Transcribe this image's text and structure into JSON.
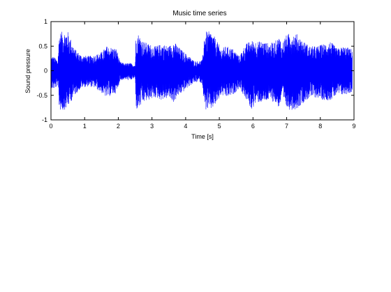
{
  "chart_data": {
    "type": "line",
    "title": "Music time series",
    "xlabel": "Time [s]",
    "ylabel": "Sound pressure",
    "xlim": [
      0,
      9
    ],
    "ylim": [
      -1,
      1
    ],
    "xticks": [
      0,
      1,
      2,
      3,
      4,
      5,
      6,
      7,
      8,
      9
    ],
    "xtick_labels": [
      "0",
      "1",
      "2",
      "3",
      "4",
      "5",
      "6",
      "7",
      "8",
      "9"
    ],
    "yticks": [
      1,
      0.5,
      0,
      -0.5,
      -1
    ],
    "ytick_labels": [
      "1",
      "0.5",
      "0",
      "-0.5",
      "-1"
    ],
    "grid": false,
    "series": [
      {
        "color": "#0000ff",
        "envelope": {
          "t": [
            0,
            0.05,
            0.15,
            0.2,
            0.25,
            0.35,
            0.5,
            0.7,
            0.9,
            1.1,
            1.3,
            1.5,
            1.65,
            1.8,
            1.95,
            2.05,
            2.2,
            2.35,
            2.5,
            2.52,
            2.55,
            2.6,
            2.75,
            2.9,
            3.1,
            3.3,
            3.5,
            3.65,
            3.8,
            3.95,
            4.1,
            4.25,
            4.4,
            4.5,
            4.55,
            4.6,
            4.75,
            4.9,
            5.05,
            5.2,
            5.4,
            5.6,
            5.7,
            5.8,
            5.95,
            6.1,
            6.3,
            6.5,
            6.65,
            6.8,
            6.85,
            6.95,
            7.1,
            7.3,
            7.5,
            7.7,
            7.9,
            8.1,
            8.3,
            8.5,
            8.7,
            8.9
          ],
          "max": [
            0.28,
            0.3,
            0.25,
            0.2,
            0.78,
            0.8,
            0.8,
            0.45,
            0.32,
            0.3,
            0.32,
            0.38,
            0.5,
            0.48,
            0.45,
            0.18,
            0.15,
            0.16,
            0.12,
            0.65,
            0.8,
            0.75,
            0.6,
            0.55,
            0.5,
            0.55,
            0.5,
            0.6,
            0.48,
            0.38,
            0.3,
            0.2,
            0.2,
            0.22,
            0.7,
            0.8,
            0.8,
            0.65,
            0.45,
            0.5,
            0.45,
            0.3,
            0.45,
            0.55,
            0.62,
            0.6,
            0.6,
            0.55,
            0.6,
            0.7,
            0.5,
            0.7,
            0.78,
            0.75,
            0.6,
            0.5,
            0.5,
            0.55,
            0.6,
            0.45,
            0.5,
            0.45
          ],
          "min": [
            -0.35,
            -0.38,
            -0.35,
            -0.3,
            -0.8,
            -0.82,
            -0.75,
            -0.5,
            -0.35,
            -0.32,
            -0.35,
            -0.45,
            -0.55,
            -0.5,
            -0.45,
            -0.2,
            -0.18,
            -0.2,
            -0.15,
            -0.7,
            -0.8,
            -0.78,
            -0.65,
            -0.6,
            -0.55,
            -0.6,
            -0.55,
            -0.65,
            -0.5,
            -0.42,
            -0.32,
            -0.25,
            -0.22,
            -0.28,
            -0.75,
            -0.8,
            -0.8,
            -0.7,
            -0.5,
            -0.55,
            -0.5,
            -0.35,
            -0.48,
            -0.6,
            -0.8,
            -0.65,
            -0.65,
            -0.6,
            -0.65,
            -0.78,
            -0.5,
            -0.75,
            -0.8,
            -0.78,
            -0.65,
            -0.55,
            -0.55,
            -0.6,
            -0.6,
            -0.5,
            -0.5,
            -0.45
          ]
        }
      }
    ]
  }
}
